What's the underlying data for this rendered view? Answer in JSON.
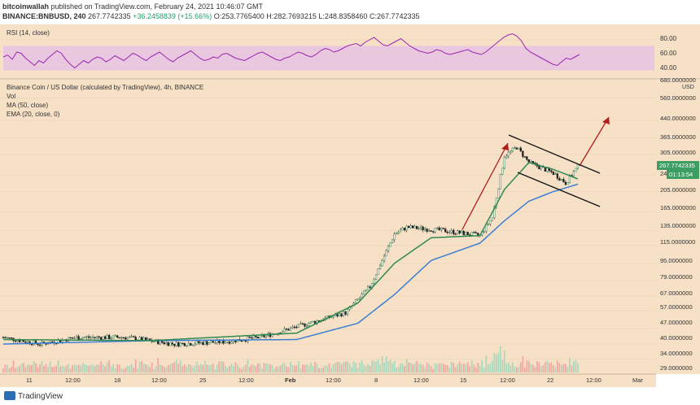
{
  "header": {
    "author": "bitcoinwallah",
    "published_text": "published on TradingView.com, February 24, 2021 10:46:07 GMT",
    "symbol": "BINANCE:BNBUSD, 240",
    "last_price": "267.7742335",
    "change": "+36.2458839 (+15.66%)",
    "ohlc_o": "O:253.7765400",
    "ohlc_h": "H:282.7693215",
    "ohlc_l": "L:248.8358460",
    "ohlc_c": "C:267.7742335"
  },
  "rsi_pane": {
    "label": "RSI (14, close)",
    "ticks": [
      "80.00",
      "60.00",
      "40.00"
    ],
    "band_upper": 70,
    "band_lower": 30,
    "line_color": "#9c27b0",
    "band_color": "#e9c7e0",
    "values": [
      52,
      55,
      48,
      60,
      58,
      50,
      44,
      38,
      46,
      42,
      50,
      56,
      62,
      58,
      48,
      40,
      34,
      40,
      46,
      42,
      48,
      52,
      50,
      44,
      48,
      54,
      50,
      46,
      52,
      58,
      55,
      50,
      46,
      52,
      56,
      60,
      54,
      48,
      44,
      50,
      54,
      58,
      62,
      56,
      50,
      46,
      48,
      52,
      50,
      56,
      58,
      54,
      50,
      48,
      46,
      50,
      54,
      58,
      60,
      56,
      52,
      48,
      46,
      50,
      52,
      56,
      60,
      58,
      54,
      52,
      56,
      62,
      66,
      64,
      60,
      62,
      66,
      70,
      72,
      74,
      70,
      76,
      80,
      84,
      78,
      72,
      70,
      74,
      78,
      82,
      76,
      70,
      66,
      62,
      60,
      58,
      60,
      64,
      62,
      58,
      56,
      58,
      60,
      62,
      64,
      60,
      58,
      56,
      60,
      66,
      72,
      78,
      84,
      88,
      90,
      86,
      78,
      66,
      60,
      56,
      52,
      48,
      44,
      40,
      38,
      44,
      50,
      48,
      52,
      56
    ]
  },
  "main_pane": {
    "title": "Binance Coin / US Dollar (calculated by TradingView), 4h, BINANCE",
    "legend": [
      "Vol",
      "MA (50, close)",
      "EMA (20, close, 0)"
    ],
    "currency": "USD",
    "price_ticks": [
      "680.0000000",
      "560.0000000",
      "440.0000000",
      "365.0000000",
      "305.0000000",
      "245.0000000",
      "205.0000000",
      "165.0000000",
      "135.0000000",
      "115.0000000",
      "95.0000000",
      "79.0000000",
      "67.0000000",
      "57.0000000",
      "47.0000000",
      "40.0000000",
      "34.0000000",
      "29.0000000"
    ],
    "last_price_tag": "267.7742335",
    "countdown_tag": "01:13:54",
    "x_ticks": [
      "11",
      "12:00",
      "18",
      "12:00",
      "25",
      "12:00",
      "Feb",
      "12:00",
      "8",
      "12:00",
      "15",
      "12:00",
      "22",
      "12:00",
      "Mar"
    ]
  },
  "chart_data": {
    "type": "candlestick",
    "title": "Binance Coin / US Dollar (calculated by TradingView), 4h, BINANCE",
    "ylabel": "USD",
    "yscale": "log",
    "ylim": [
      29,
      680
    ],
    "x_range": [
      "2021-01-08",
      "2021-03-02"
    ],
    "series": [
      {
        "name": "BNBUSD",
        "close_samples": [
          [
            "2021-01-08",
            43
          ],
          [
            "2021-01-11",
            40
          ],
          [
            "2021-01-14",
            43
          ],
          [
            "2021-01-18",
            43
          ],
          [
            "2021-01-22",
            40
          ],
          [
            "2021-01-26",
            41
          ],
          [
            "2021-01-29",
            43
          ],
          [
            "2021-02-02",
            50
          ],
          [
            "2021-02-05",
            56
          ],
          [
            "2021-02-07",
            74
          ],
          [
            "2021-02-09",
            130
          ],
          [
            "2021-02-10",
            140
          ],
          [
            "2021-02-13",
            135
          ],
          [
            "2021-02-16",
            128
          ],
          [
            "2021-02-17",
            155
          ],
          [
            "2021-02-18",
            300
          ],
          [
            "2021-02-19",
            330
          ],
          [
            "2021-02-20",
            280
          ],
          [
            "2021-02-22",
            250
          ],
          [
            "2021-02-23",
            225
          ],
          [
            "2021-02-24",
            268
          ]
        ]
      },
      {
        "name": "EMA (20, close, 0)",
        "color": "#2e8a50",
        "samples": [
          [
            "2021-01-08",
            42
          ],
          [
            "2021-01-20",
            41.5
          ],
          [
            "2021-02-01",
            45
          ],
          [
            "2021-02-06",
            62
          ],
          [
            "2021-02-09",
            95
          ],
          [
            "2021-02-12",
            125
          ],
          [
            "2021-02-16",
            128
          ],
          [
            "2021-02-18",
            210
          ],
          [
            "2021-02-20",
            280
          ],
          [
            "2021-02-22",
            260
          ],
          [
            "2021-02-24",
            235
          ]
        ]
      },
      {
        "name": "MA (50, close)",
        "color": "#3b7fd4",
        "samples": [
          [
            "2021-01-08",
            40
          ],
          [
            "2021-01-20",
            41.5
          ],
          [
            "2021-02-01",
            42
          ],
          [
            "2021-02-06",
            50
          ],
          [
            "2021-02-09",
            68
          ],
          [
            "2021-02-12",
            98
          ],
          [
            "2021-02-16",
            118
          ],
          [
            "2021-02-18",
            150
          ],
          [
            "2021-02-20",
            185
          ],
          [
            "2021-02-22",
            205
          ],
          [
            "2021-02-24",
            222
          ]
        ]
      }
    ],
    "last_price": 267.7742335
  }
}
